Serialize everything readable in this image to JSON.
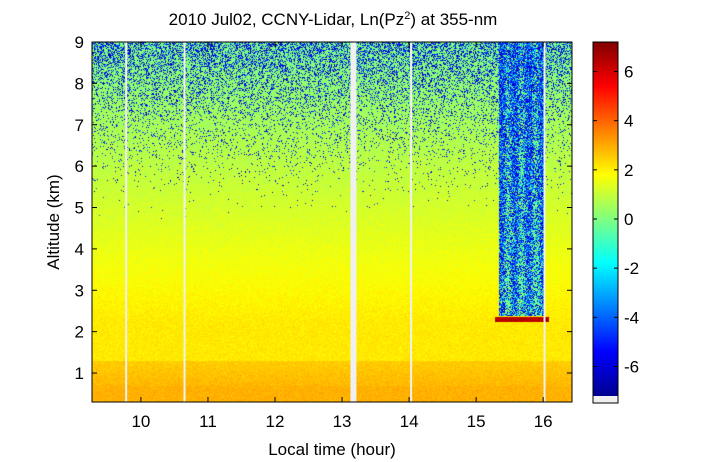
{
  "chart_data": {
    "type": "heatmap",
    "title": {
      "prefix": "2010 Jul02, CCNY-Lidar, Ln(Pz",
      "superscript": "2",
      "suffix": ") at 355-nm"
    },
    "xlabel": "Local time (hour)",
    "ylabel": "Altitude (km)",
    "xlim": [
      9.27,
      16.43
    ],
    "ylim": [
      0.3,
      9.0
    ],
    "x_ticks": [
      10,
      11,
      12,
      13,
      14,
      15,
      16
    ],
    "y_ticks": [
      1,
      2,
      3,
      4,
      5,
      6,
      7,
      8,
      9
    ],
    "colorbar": {
      "range": [
        -7.2,
        7.2
      ],
      "ticks": [
        6,
        4,
        2,
        0,
        -2,
        -4,
        -6
      ],
      "tick_labels": [
        "6",
        "4",
        "2",
        "0",
        "-2",
        "-4",
        "-6"
      ]
    },
    "data_gaps_hours": [
      9.78,
      10.65,
      13.17,
      14.03,
      16.02
    ],
    "cloud_layer": {
      "x_start": 15.33,
      "x_end": 16.02,
      "altitude_km": 2.3,
      "value": 6
    },
    "noise_columns_hours": [
      15.33,
      16.02
    ],
    "colors": {
      "gap": "#f0f0f0",
      "background": "#ffffff"
    }
  }
}
